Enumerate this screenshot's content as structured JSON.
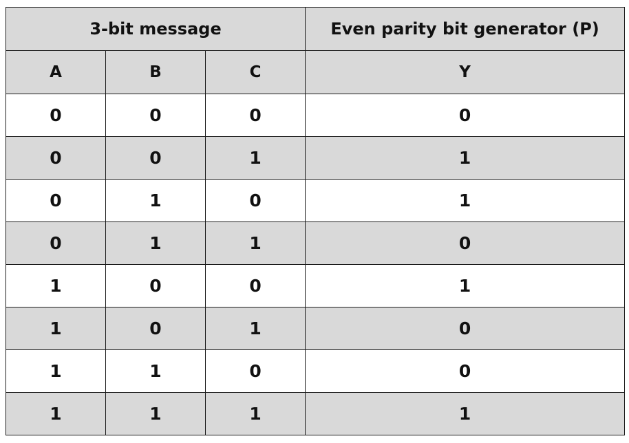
{
  "table": {
    "group_headers": {
      "message": "3-bit message",
      "parity": "Even parity bit generator (P)"
    },
    "column_headers": [
      "A",
      "B",
      "C",
      "Y"
    ],
    "rows": [
      [
        "0",
        "0",
        "0",
        "0"
      ],
      [
        "0",
        "0",
        "1",
        "1"
      ],
      [
        "0",
        "1",
        "0",
        "1"
      ],
      [
        "0",
        "1",
        "1",
        "0"
      ],
      [
        "1",
        "0",
        "0",
        "1"
      ],
      [
        "1",
        "0",
        "1",
        "0"
      ],
      [
        "1",
        "1",
        "0",
        "0"
      ],
      [
        "1",
        "1",
        "1",
        "1"
      ]
    ],
    "colors": {
      "shaded_background": "#d9d9d9",
      "plain_background": "#ffffff",
      "border": "#1a1a1a"
    }
  }
}
